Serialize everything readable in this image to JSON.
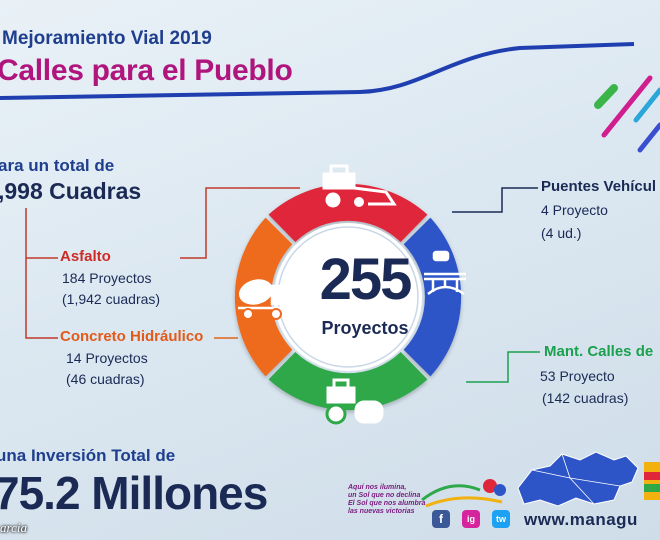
{
  "header": {
    "subtitle": "Mejoramiento Vial 2019",
    "title": "Calles para el Pueblo"
  },
  "total": {
    "prefix": "ara un total de",
    "value": ",998 Cuadras"
  },
  "center": {
    "number": "255",
    "label": "Proyectos"
  },
  "categories": {
    "asfalto": {
      "heading": "Asfalto",
      "line1": "184 Proyectos",
      "line2": "(1,942 cuadras)"
    },
    "concreto": {
      "heading": "Concreto Hidráulico",
      "line1": "14 Proyectos",
      "line2": "(46 cuadras)"
    },
    "puentes": {
      "heading": "Puentes Vehícul",
      "line1": "4 Proyecto",
      "line2": "(4 ud.)"
    },
    "mant": {
      "heading": "Mant. Calles de",
      "line1": "53 Proyecto",
      "line2": "(142 cuadras)"
    }
  },
  "investment": {
    "prefix": "una Inversión Total de",
    "value": "75.2 Millones"
  },
  "footer": {
    "credit": "arcia",
    "slogan": [
      "Aquí nos ilumina,",
      "un Sol que no declina",
      "El Sol que nos alumbra",
      "las nuevas victorias"
    ],
    "website": "www.managu",
    "social": [
      "f",
      "ig",
      "tw"
    ]
  },
  "colors": {
    "top": "#e0263a",
    "right": "#2d55c8",
    "bottom": "#2fa84a",
    "left": "#ee6a1f",
    "navy": "#1b2a55",
    "magenta": "#b0157d"
  },
  "icons": {
    "top": "tractor-icon",
    "right": "bridge-icon",
    "bottom": "road-roller-icon",
    "left": "cement-mixer-icon"
  }
}
